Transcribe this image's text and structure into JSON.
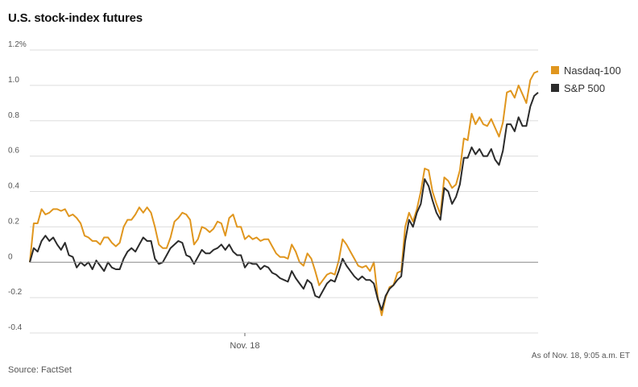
{
  "title": "U.S. stock-index futures",
  "source": "Source: FactSet",
  "timestamp": "As of Nov. 18, 9:05 a.m. ET",
  "colors": {
    "nasdaq": "#E0961E",
    "sp500": "#2B2B2B",
    "grid": "#dddddd",
    "zero": "#888888"
  },
  "chart_data": {
    "type": "line",
    "title": "U.S. stock-index futures",
    "ylim": [
      -0.4,
      1.2
    ],
    "y_ticks": [
      -0.4,
      -0.2,
      0,
      0.2,
      0.4,
      0.6,
      0.8,
      1.0,
      1.2
    ],
    "y_tick_labels": [
      "-0.4",
      "-0.2",
      "0",
      "0.2",
      "0.4",
      "0.6",
      "0.8",
      "1.0",
      "1.2%"
    ],
    "x_tick_labels": [
      "Nov. 18"
    ],
    "x_tick_index": [
      55
    ],
    "n_points": 131,
    "series": [
      {
        "name": "Nasdaq-100",
        "color": "#E0961E",
        "keypoints": [
          [
            0,
            0
          ],
          [
            1,
            0.22
          ],
          [
            2,
            0.22
          ],
          [
            3,
            0.3
          ],
          [
            4,
            0.27
          ],
          [
            5,
            0.28
          ],
          [
            6,
            0.3
          ],
          [
            7,
            0.3
          ],
          [
            8,
            0.29
          ],
          [
            9,
            0.3
          ],
          [
            10,
            0.26
          ],
          [
            11,
            0.27
          ],
          [
            12,
            0.25
          ],
          [
            13,
            0.22
          ],
          [
            14,
            0.15
          ],
          [
            15,
            0.14
          ],
          [
            16,
            0.12
          ],
          [
            17,
            0.12
          ],
          [
            18,
            0.1
          ],
          [
            19,
            0.14
          ],
          [
            20,
            0.14
          ],
          [
            21,
            0.11
          ],
          [
            22,
            0.09
          ],
          [
            23,
            0.11
          ],
          [
            24,
            0.2
          ],
          [
            25,
            0.24
          ],
          [
            26,
            0.24
          ],
          [
            27,
            0.27
          ],
          [
            28,
            0.31
          ],
          [
            29,
            0.28
          ],
          [
            30,
            0.31
          ],
          [
            31,
            0.28
          ],
          [
            32,
            0.2
          ],
          [
            33,
            0.1
          ],
          [
            34,
            0.08
          ],
          [
            35,
            0.08
          ],
          [
            36,
            0.14
          ],
          [
            37,
            0.23
          ],
          [
            38,
            0.25
          ],
          [
            39,
            0.28
          ],
          [
            40,
            0.27
          ],
          [
            41,
            0.24
          ],
          [
            42,
            0.1
          ],
          [
            43,
            0.13
          ],
          [
            44,
            0.2
          ],
          [
            45,
            0.19
          ],
          [
            46,
            0.17
          ],
          [
            47,
            0.19
          ],
          [
            48,
            0.23
          ],
          [
            49,
            0.22
          ],
          [
            50,
            0.15
          ],
          [
            51,
            0.25
          ],
          [
            52,
            0.27
          ],
          [
            53,
            0.2
          ],
          [
            54,
            0.2
          ],
          [
            55,
            0.13
          ],
          [
            56,
            0.15
          ],
          [
            57,
            0.13
          ],
          [
            58,
            0.14
          ],
          [
            59,
            0.12
          ],
          [
            60,
            0.13
          ],
          [
            61,
            0.13
          ],
          [
            62,
            0.09
          ],
          [
            63,
            0.05
          ],
          [
            64,
            0.03
          ],
          [
            65,
            0.03
          ],
          [
            66,
            0.02
          ],
          [
            67,
            0.1
          ],
          [
            68,
            0.06
          ],
          [
            69,
            0.0
          ],
          [
            70,
            -0.02
          ],
          [
            71,
            0.05
          ],
          [
            72,
            0.02
          ],
          [
            73,
            -0.05
          ],
          [
            74,
            -0.13
          ],
          [
            75,
            -0.1
          ],
          [
            76,
            -0.07
          ],
          [
            77,
            -0.06
          ],
          [
            78,
            -0.07
          ],
          [
            79,
            0.01
          ],
          [
            80,
            0.13
          ],
          [
            81,
            0.1
          ],
          [
            82,
            0.06
          ],
          [
            83,
            0.02
          ],
          [
            84,
            -0.02
          ],
          [
            85,
            -0.03
          ],
          [
            86,
            -0.02
          ],
          [
            87,
            -0.05
          ],
          [
            88,
            0.0
          ],
          [
            89,
            -0.2
          ],
          [
            90,
            -0.3
          ],
          [
            91,
            -0.2
          ],
          [
            92,
            -0.14
          ],
          [
            93,
            -0.13
          ],
          [
            94,
            -0.06
          ],
          [
            95,
            -0.05
          ],
          [
            96,
            0.2
          ],
          [
            97,
            0.28
          ],
          [
            98,
            0.23
          ],
          [
            99,
            0.3
          ],
          [
            100,
            0.4
          ],
          [
            101,
            0.53
          ],
          [
            102,
            0.52
          ],
          [
            103,
            0.4
          ],
          [
            104,
            0.33
          ],
          [
            105,
            0.27
          ],
          [
            106,
            0.48
          ],
          [
            107,
            0.46
          ],
          [
            108,
            0.42
          ],
          [
            109,
            0.44
          ],
          [
            110,
            0.52
          ],
          [
            111,
            0.7
          ],
          [
            112,
            0.69
          ],
          [
            113,
            0.84
          ],
          [
            114,
            0.78
          ],
          [
            115,
            0.82
          ],
          [
            116,
            0.78
          ],
          [
            117,
            0.77
          ],
          [
            118,
            0.81
          ],
          [
            119,
            0.76
          ],
          [
            120,
            0.71
          ],
          [
            121,
            0.79
          ],
          [
            122,
            0.96
          ],
          [
            123,
            0.97
          ],
          [
            124,
            0.93
          ],
          [
            125,
            1.0
          ],
          [
            126,
            0.95
          ],
          [
            127,
            0.9
          ],
          [
            128,
            1.03
          ],
          [
            129,
            1.07
          ],
          [
            130,
            1.08
          ]
        ]
      },
      {
        "name": "S&P 500",
        "color": "#2B2B2B",
        "keypoints": [
          [
            0,
            0
          ],
          [
            1,
            0.08
          ],
          [
            2,
            0.06
          ],
          [
            3,
            0.12
          ],
          [
            4,
            0.15
          ],
          [
            5,
            0.12
          ],
          [
            6,
            0.14
          ],
          [
            7,
            0.1
          ],
          [
            8,
            0.07
          ],
          [
            9,
            0.11
          ],
          [
            10,
            0.04
          ],
          [
            11,
            0.03
          ],
          [
            12,
            -0.03
          ],
          [
            13,
            0.0
          ],
          [
            14,
            -0.02
          ],
          [
            15,
            0.0
          ],
          [
            16,
            -0.04
          ],
          [
            17,
            0.01
          ],
          [
            18,
            -0.02
          ],
          [
            19,
            -0.05
          ],
          [
            20,
            0.0
          ],
          [
            21,
            -0.03
          ],
          [
            22,
            -0.04
          ],
          [
            23,
            -0.04
          ],
          [
            24,
            0.02
          ],
          [
            25,
            0.06
          ],
          [
            26,
            0.08
          ],
          [
            27,
            0.06
          ],
          [
            28,
            0.1
          ],
          [
            29,
            0.14
          ],
          [
            30,
            0.12
          ],
          [
            31,
            0.12
          ],
          [
            32,
            0.02
          ],
          [
            33,
            -0.01
          ],
          [
            34,
            0.0
          ],
          [
            35,
            0.04
          ],
          [
            36,
            0.08
          ],
          [
            37,
            0.1
          ],
          [
            38,
            0.12
          ],
          [
            39,
            0.11
          ],
          [
            40,
            0.04
          ],
          [
            41,
            0.03
          ],
          [
            42,
            -0.01
          ],
          [
            43,
            0.03
          ],
          [
            44,
            0.07
          ],
          [
            45,
            0.05
          ],
          [
            46,
            0.05
          ],
          [
            47,
            0.07
          ],
          [
            48,
            0.08
          ],
          [
            49,
            0.1
          ],
          [
            50,
            0.07
          ],
          [
            51,
            0.1
          ],
          [
            52,
            0.06
          ],
          [
            53,
            0.04
          ],
          [
            54,
            0.04
          ],
          [
            55,
            -0.03
          ],
          [
            56,
            0.0
          ],
          [
            57,
            -0.01
          ],
          [
            58,
            -0.01
          ],
          [
            59,
            -0.04
          ],
          [
            60,
            -0.02
          ],
          [
            61,
            -0.03
          ],
          [
            62,
            -0.06
          ],
          [
            63,
            -0.07
          ],
          [
            64,
            -0.09
          ],
          [
            65,
            -0.1
          ],
          [
            66,
            -0.11
          ],
          [
            67,
            -0.05
          ],
          [
            68,
            -0.09
          ],
          [
            69,
            -0.12
          ],
          [
            70,
            -0.15
          ],
          [
            71,
            -0.1
          ],
          [
            72,
            -0.12
          ],
          [
            73,
            -0.19
          ],
          [
            74,
            -0.2
          ],
          [
            75,
            -0.16
          ],
          [
            76,
            -0.12
          ],
          [
            77,
            -0.1
          ],
          [
            78,
            -0.11
          ],
          [
            79,
            -0.05
          ],
          [
            80,
            0.02
          ],
          [
            81,
            -0.02
          ],
          [
            82,
            -0.05
          ],
          [
            83,
            -0.08
          ],
          [
            84,
            -0.1
          ],
          [
            85,
            -0.08
          ],
          [
            86,
            -0.1
          ],
          [
            87,
            -0.1
          ],
          [
            88,
            -0.12
          ],
          [
            89,
            -0.21
          ],
          [
            90,
            -0.27
          ],
          [
            91,
            -0.19
          ],
          [
            92,
            -0.15
          ],
          [
            93,
            -0.13
          ],
          [
            94,
            -0.1
          ],
          [
            95,
            -0.08
          ],
          [
            96,
            0.12
          ],
          [
            97,
            0.24
          ],
          [
            98,
            0.2
          ],
          [
            99,
            0.28
          ],
          [
            100,
            0.33
          ],
          [
            101,
            0.47
          ],
          [
            102,
            0.43
          ],
          [
            103,
            0.35
          ],
          [
            104,
            0.28
          ],
          [
            105,
            0.24
          ],
          [
            106,
            0.42
          ],
          [
            107,
            0.4
          ],
          [
            108,
            0.33
          ],
          [
            109,
            0.37
          ],
          [
            110,
            0.44
          ],
          [
            111,
            0.59
          ],
          [
            112,
            0.59
          ],
          [
            113,
            0.65
          ],
          [
            114,
            0.61
          ],
          [
            115,
            0.64
          ],
          [
            116,
            0.6
          ],
          [
            117,
            0.6
          ],
          [
            118,
            0.64
          ],
          [
            119,
            0.58
          ],
          [
            120,
            0.55
          ],
          [
            121,
            0.63
          ],
          [
            122,
            0.78
          ],
          [
            123,
            0.78
          ],
          [
            124,
            0.74
          ],
          [
            125,
            0.82
          ],
          [
            126,
            0.77
          ],
          [
            127,
            0.77
          ],
          [
            128,
            0.88
          ],
          [
            129,
            0.94
          ],
          [
            130,
            0.96
          ]
        ]
      }
    ],
    "grid": true,
    "legend_position": "right"
  }
}
